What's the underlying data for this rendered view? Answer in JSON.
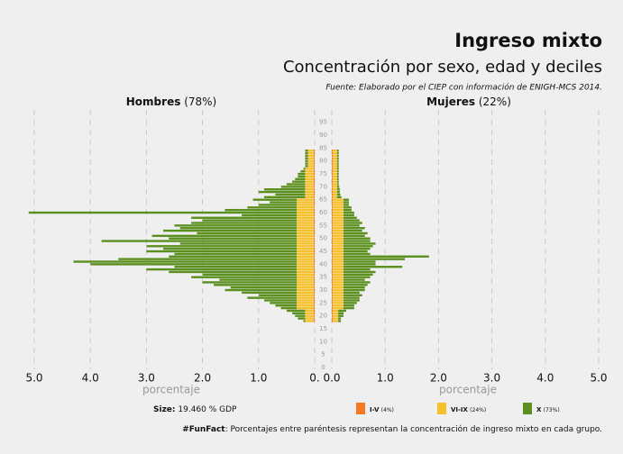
{
  "chart_data": {
    "type": "pyramid",
    "title": "Ingreso mixto",
    "subtitle": "Concentración por sexo, edad y deciles",
    "source": "Fuente: Elaborado por el CIEP con información de ENIGH-MCS 2014.",
    "ylim": [
      0,
      97
    ],
    "yticks": [
      0,
      5,
      10,
      15,
      20,
      25,
      30,
      35,
      40,
      45,
      50,
      55,
      60,
      65,
      70,
      75,
      80,
      85,
      90,
      95
    ],
    "y": [
      18,
      19,
      20,
      21,
      22,
      23,
      24,
      25,
      26,
      27,
      28,
      29,
      30,
      31,
      32,
      33,
      34,
      35,
      36,
      37,
      38,
      39,
      40,
      41,
      42,
      43,
      44,
      45,
      46,
      47,
      48,
      49,
      50,
      51,
      52,
      53,
      54,
      55,
      56,
      57,
      58,
      59,
      60,
      61,
      62,
      63,
      64,
      65,
      66,
      67,
      68,
      69,
      70,
      71,
      72,
      73,
      74,
      75,
      76,
      77,
      78,
      79,
      80,
      81,
      82,
      83,
      84
    ],
    "panels": [
      {
        "title": "Hombres",
        "share": "(78%)",
        "xlabel": "porcentaje",
        "xlim": [
          0,
          5
        ],
        "xticks": [
          {
            "value": 5,
            "label": "5.0"
          },
          {
            "value": 4,
            "label": "4.0"
          },
          {
            "value": 3,
            "label": "3.0"
          },
          {
            "value": 2,
            "label": "2.0"
          },
          {
            "value": 1,
            "label": "1.0"
          },
          {
            "value": 0,
            "label": "0."
          }
        ]
      },
      {
        "title": "Mujeres",
        "share": "(22%)",
        "xlabel": "porcentaje",
        "xlim": [
          0,
          5
        ],
        "xticks": [
          {
            "value": 0,
            "label": "0.0"
          },
          {
            "value": 1,
            "label": "1.0"
          },
          {
            "value": 2,
            "label": "2.0"
          },
          {
            "value": 3,
            "label": "3.0"
          },
          {
            "value": 4,
            "label": "4.0"
          },
          {
            "value": 5,
            "label": "5.0"
          }
        ]
      }
    ],
    "series": [
      {
        "name": "I-V",
        "share": "(4%)",
        "color": "#f47b20",
        "values": [
          [
            0.02,
            0.02,
            0.02,
            0.02,
            0.02,
            0.02,
            0.02,
            0.02,
            0.02,
            0.02,
            0.02,
            0.02,
            0.02,
            0.02,
            0.02,
            0.02,
            0.02,
            0.02,
            0.02,
            0.02,
            0.02,
            0.02,
            0.02,
            0.02,
            0.02,
            0.02,
            0.02,
            0.02,
            0.02,
            0.02,
            0.02,
            0.02,
            0.02,
            0.02,
            0.02,
            0.02,
            0.02,
            0.02,
            0.02,
            0.02,
            0.02,
            0.02,
            0.02,
            0.02,
            0.02,
            0.02,
            0.02,
            0.02,
            0.02,
            0.02,
            0.02,
            0.02,
            0.02,
            0.02,
            0.02,
            0.02,
            0.02,
            0.02,
            0.02,
            0.02,
            0.02,
            0.02,
            0.02,
            0.02,
            0.02,
            0.02,
            0.02
          ],
          [
            0.02,
            0.02,
            0.02,
            0.02,
            0.02,
            0.02,
            0.02,
            0.02,
            0.02,
            0.02,
            0.02,
            0.02,
            0.02,
            0.02,
            0.02,
            0.02,
            0.02,
            0.02,
            0.02,
            0.02,
            0.02,
            0.02,
            0.02,
            0.02,
            0.02,
            0.02,
            0.02,
            0.02,
            0.02,
            0.02,
            0.02,
            0.02,
            0.02,
            0.02,
            0.02,
            0.02,
            0.02,
            0.02,
            0.02,
            0.02,
            0.02,
            0.02,
            0.02,
            0.02,
            0.02,
            0.02,
            0.02,
            0.02,
            0.02,
            0.02,
            0.02,
            0.02,
            0.02,
            0.02,
            0.02,
            0.02,
            0.02,
            0.02,
            0.02,
            0.02,
            0.02,
            0.02,
            0.02,
            0.02,
            0.02,
            0.02,
            0.02
          ]
        ]
      },
      {
        "name": "VI-IX",
        "share": "(24%)",
        "color": "#f7c12a",
        "values": [
          [
            0.15,
            0.15,
            0.15,
            0.15,
            0.15,
            0.3,
            0.3,
            0.3,
            0.3,
            0.3,
            0.3,
            0.3,
            0.3,
            0.3,
            0.3,
            0.3,
            0.3,
            0.3,
            0.3,
            0.3,
            0.3,
            0.3,
            0.3,
            0.3,
            0.3,
            0.3,
            0.3,
            0.3,
            0.3,
            0.3,
            0.3,
            0.3,
            0.3,
            0.3,
            0.3,
            0.3,
            0.3,
            0.3,
            0.3,
            0.3,
            0.3,
            0.3,
            0.3,
            0.3,
            0.3,
            0.3,
            0.3,
            0.3,
            0.15,
            0.15,
            0.15,
            0.15,
            0.15,
            0.15,
            0.15,
            0.15,
            0.15,
            0.15,
            0.15,
            0.15,
            0.1,
            0.1,
            0.1,
            0.1,
            0.1,
            0.1,
            0.1
          ],
          [
            0.1,
            0.1,
            0.1,
            0.1,
            0.1,
            0.2,
            0.2,
            0.2,
            0.2,
            0.2,
            0.2,
            0.2,
            0.2,
            0.2,
            0.2,
            0.2,
            0.2,
            0.2,
            0.2,
            0.2,
            0.2,
            0.2,
            0.2,
            0.2,
            0.2,
            0.2,
            0.2,
            0.2,
            0.2,
            0.2,
            0.2,
            0.2,
            0.2,
            0.2,
            0.2,
            0.2,
            0.2,
            0.2,
            0.2,
            0.2,
            0.2,
            0.2,
            0.2,
            0.2,
            0.2,
            0.2,
            0.2,
            0.2,
            0.08,
            0.08,
            0.08,
            0.08,
            0.08,
            0.08,
            0.08,
            0.08,
            0.08,
            0.08,
            0.08,
            0.08,
            0.08,
            0.08,
            0.08,
            0.08,
            0.08,
            0.08,
            0.08
          ]
        ]
      },
      {
        "name": "X",
        "share": "(73%)",
        "color": "#5b8f1f",
        "values": [
          [
            0.03,
            0.13,
            0.18,
            0.23,
            0.33,
            0.28,
            0.38,
            0.48,
            0.58,
            0.88,
            0.68,
            0.98,
            1.28,
            1.18,
            1.48,
            1.68,
            1.38,
            1.88,
            1.68,
            2.28,
            2.68,
            2.18,
            3.68,
            3.98,
            3.18,
            2.28,
            2.18,
            2.68,
            2.38,
            2.68,
            2.08,
            3.48,
            2.28,
            2.58,
            1.78,
            2.38,
            2.08,
            2.18,
            1.88,
            1.68,
            1.88,
            0.98,
            4.78,
            1.28,
            0.88,
            0.68,
            0.48,
            0.78,
            0.73,
            0.53,
            0.83,
            0.73,
            0.43,
            0.33,
            0.23,
            0.18,
            0.13,
            0.13,
            0.08,
            0.03,
            0.05,
            0.05,
            0.05,
            0.05,
            0.05,
            0.05,
            0.05
          ],
          [
            0.05,
            0.05,
            0.1,
            0.1,
            0.15,
            0.2,
            0.2,
            0.25,
            0.3,
            0.3,
            0.35,
            0.3,
            0.4,
            0.4,
            0.45,
            0.5,
            0.4,
            0.5,
            0.55,
            0.6,
            0.5,
            1.1,
            0.6,
            0.6,
            1.15,
            1.6,
            0.5,
            0.45,
            0.5,
            0.55,
            0.6,
            0.5,
            0.5,
            0.4,
            0.45,
            0.35,
            0.4,
            0.3,
            0.35,
            0.3,
            0.25,
            0.2,
            0.2,
            0.15,
            0.15,
            0.1,
            0.1,
            0.1,
            0.08,
            0.06,
            0.05,
            0.05,
            0.04,
            0.03,
            0.03,
            0.03,
            0.03,
            0.03,
            0.03,
            0.03,
            0.03,
            0.03,
            0.03,
            0.03,
            0.03,
            0.03,
            0.03
          ]
        ]
      }
    ],
    "size_label": "Size:",
    "size_text": "19.460 % GDP",
    "funfact_label": "#FunFact",
    "funfact_text": ": Porcentajes entre paréntesis representan la concentración de ingreso mixto en cada grupo."
  }
}
